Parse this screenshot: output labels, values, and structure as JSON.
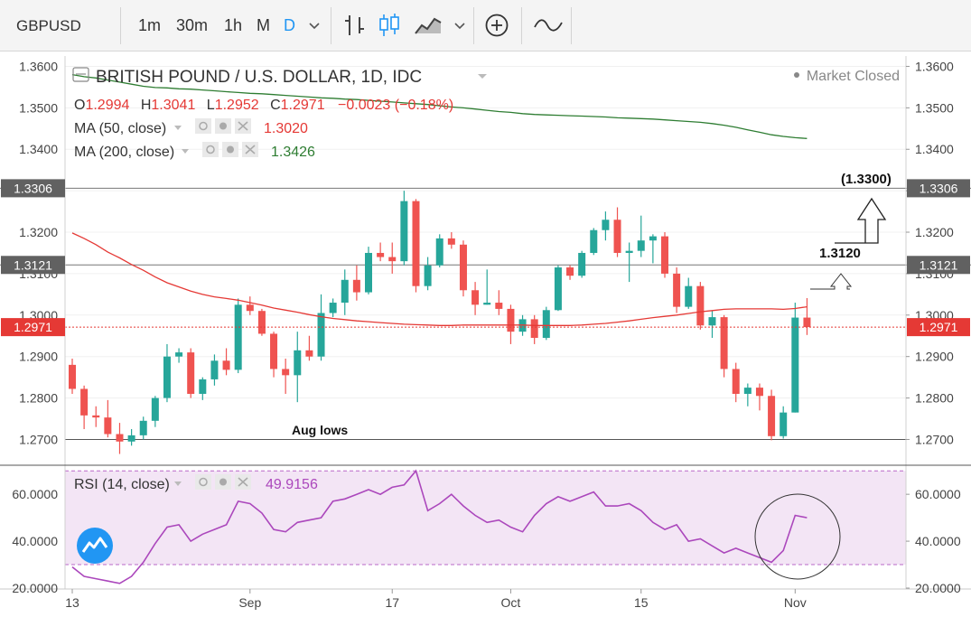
{
  "toolbar": {
    "symbol": "GBPUSD",
    "intervals": [
      "1m",
      "30m",
      "1h",
      "M",
      "D"
    ],
    "active_interval": "D"
  },
  "chart_data": [
    {
      "type": "candlestick",
      "title": "BRITISH POUND / U.S. DOLLAR, 1D, IDC",
      "status": "Market Closed",
      "ohlc_label": {
        "o": "1.2994",
        "h": "1.3041",
        "l": "1.2952",
        "c": "1.2971",
        "chg": "−0.0023 (−0.18%)"
      },
      "ma50": {
        "label": "MA (50, close)",
        "value": "1.3020",
        "color": "#e53935"
      },
      "ma200": {
        "label": "MA (200, close)",
        "value": "1.3426",
        "color": "#2e7d32"
      },
      "up_color": "#26a69a",
      "down_color": "#ef5350",
      "ylim": [
        1.264,
        1.3625
      ],
      "y_ticks": [
        "1.2700",
        "1.2800",
        "1.2900",
        "1.3000",
        "1.3100",
        "1.3200",
        "1.3300",
        "1.3400",
        "1.3500",
        "1.3600"
      ],
      "x_ticks": [
        "13",
        "Sep",
        "17",
        "Oct",
        "15",
        "Nov"
      ],
      "x_tick_index": [
        0,
        15,
        27,
        37,
        48,
        61
      ],
      "last_price": "1.2971",
      "hlines": [
        {
          "label": "1.3306",
          "value": 1.3306
        },
        {
          "label": "1.3121",
          "value": 1.3121
        }
      ],
      "support_line": {
        "value": 1.27,
        "label": "Aug lows"
      },
      "annotations": [
        "1.3120",
        "(1.3300)"
      ],
      "candles": [
        [
          1.288,
          1.2895,
          1.281,
          1.2822
        ],
        [
          1.2822,
          1.283,
          1.2725,
          1.2758
        ],
        [
          1.2758,
          1.278,
          1.273,
          1.2753
        ],
        [
          1.2753,
          1.2795,
          1.2705,
          1.2713
        ],
        [
          1.2713,
          1.274,
          1.2665,
          1.2695
        ],
        [
          1.2695,
          1.2725,
          1.2685,
          1.271
        ],
        [
          1.271,
          1.2755,
          1.27,
          1.2745
        ],
        [
          1.2745,
          1.2805,
          1.273,
          1.28
        ],
        [
          1.28,
          1.293,
          1.279,
          1.29
        ],
        [
          1.29,
          1.292,
          1.2885,
          1.291
        ],
        [
          1.291,
          1.292,
          1.28,
          1.281
        ],
        [
          1.281,
          1.285,
          1.2795,
          1.2845
        ],
        [
          1.2845,
          1.2905,
          1.283,
          1.289
        ],
        [
          1.289,
          1.292,
          1.2855,
          1.2868
        ],
        [
          1.2868,
          1.304,
          1.286,
          1.3025
        ],
        [
          1.3025,
          1.3045,
          1.3,
          1.301
        ],
        [
          1.301,
          1.3015,
          1.295,
          1.2955
        ],
        [
          1.2955,
          1.296,
          1.285,
          1.287
        ],
        [
          1.287,
          1.2895,
          1.281,
          1.2855
        ],
        [
          1.2855,
          1.296,
          1.279,
          1.2915
        ],
        [
          1.2915,
          1.295,
          1.289,
          1.29
        ],
        [
          1.29,
          1.305,
          1.289,
          1.3005
        ],
        [
          1.3005,
          1.304,
          1.2995,
          1.303
        ],
        [
          1.303,
          1.311,
          1.3,
          1.3085
        ],
        [
          1.3085,
          1.312,
          1.3035,
          1.3055
        ],
        [
          1.3055,
          1.3165,
          1.305,
          1.315
        ],
        [
          1.315,
          1.3175,
          1.313,
          1.314
        ],
        [
          1.314,
          1.3175,
          1.31,
          1.313
        ],
        [
          1.313,
          1.33,
          1.312,
          1.3275
        ],
        [
          1.3275,
          1.328,
          1.3055,
          1.307
        ],
        [
          1.307,
          1.314,
          1.306,
          1.312
        ],
        [
          1.312,
          1.3195,
          1.3115,
          1.3185
        ],
        [
          1.3185,
          1.32,
          1.316,
          1.317
        ],
        [
          1.317,
          1.318,
          1.3045,
          1.306
        ],
        [
          1.306,
          1.308,
          1.3,
          1.3025
        ],
        [
          1.3025,
          1.311,
          1.3025,
          1.303
        ],
        [
          1.303,
          1.306,
          1.3,
          1.3015
        ],
        [
          1.3015,
          1.3025,
          1.293,
          1.296
        ],
        [
          1.296,
          1.3,
          1.295,
          1.299
        ],
        [
          1.299,
          1.3,
          1.293,
          1.2945
        ],
        [
          1.2945,
          1.302,
          1.294,
          1.3012
        ],
        [
          1.3012,
          1.312,
          1.301,
          1.3115
        ],
        [
          1.3115,
          1.312,
          1.3085,
          1.3095
        ],
        [
          1.3095,
          1.3155,
          1.309,
          1.315
        ],
        [
          1.315,
          1.321,
          1.3145,
          1.3205
        ],
        [
          1.3205,
          1.325,
          1.318,
          1.323
        ],
        [
          1.323,
          1.326,
          1.314,
          1.315
        ],
        [
          1.315,
          1.3175,
          1.308,
          1.3155
        ],
        [
          1.3155,
          1.324,
          1.314,
          1.318
        ],
        [
          1.318,
          1.3195,
          1.3125,
          1.319
        ],
        [
          1.319,
          1.32,
          1.309,
          1.31
        ],
        [
          1.31,
          1.3115,
          1.3005,
          1.302
        ],
        [
          1.302,
          1.309,
          1.3015,
          1.307
        ],
        [
          1.307,
          1.308,
          1.2965,
          1.2975
        ],
        [
          1.2975,
          1.301,
          1.2945,
          1.2995
        ],
        [
          1.2995,
          1.3,
          1.285,
          1.287
        ],
        [
          1.287,
          1.2885,
          1.279,
          1.281
        ],
        [
          1.281,
          1.2835,
          1.278,
          1.2825
        ],
        [
          1.2825,
          1.2835,
          1.277,
          1.2805
        ],
        [
          1.2805,
          1.282,
          1.2698,
          1.2708
        ],
        [
          1.2708,
          1.278,
          1.2702,
          1.2765
        ],
        [
          1.2765,
          1.303,
          1.2765,
          1.2994
        ],
        [
          1.2994,
          1.3041,
          1.2952,
          1.2971
        ]
      ],
      "ma50_values": [
        1.3198,
        1.3185,
        1.317,
        1.3152,
        1.3138,
        1.3122,
        1.3108,
        1.3092,
        1.3078,
        1.3068,
        1.3058,
        1.305,
        1.3044,
        1.304,
        1.3036,
        1.303,
        1.3024,
        1.3017,
        1.3012,
        1.3007,
        1.3001,
        1.2996,
        1.2992,
        1.2989,
        1.2986,
        1.2984,
        1.2982,
        1.298,
        1.2978,
        1.2977,
        1.2976,
        1.2975,
        1.2975,
        1.2976,
        1.2976,
        1.2976,
        1.2976,
        1.2976,
        1.2976,
        1.2975,
        1.2975,
        1.2975,
        1.2975,
        1.2976,
        1.2978,
        1.298,
        1.2983,
        1.2986,
        1.299,
        1.2994,
        1.2997,
        1.3,
        1.3004,
        1.3008,
        1.3011,
        1.3014,
        1.3015,
        1.3015,
        1.3015,
        1.3015,
        1.3014,
        1.3016,
        1.302
      ],
      "ma200_values": [
        1.358,
        1.3575,
        1.3572,
        1.3567,
        1.3562,
        1.3557,
        1.3552,
        1.3549,
        1.3548,
        1.3546,
        1.3545,
        1.3543,
        1.3541,
        1.3539,
        1.3537,
        1.3535,
        1.3534,
        1.3532,
        1.353,
        1.3528,
        1.3526,
        1.3524,
        1.3523,
        1.3521,
        1.352,
        1.3518,
        1.3516,
        1.3514,
        1.3512,
        1.351,
        1.3508,
        1.3505,
        1.3502,
        1.35,
        1.3497,
        1.3494,
        1.3491,
        1.3489,
        1.3486,
        1.3484,
        1.3483,
        1.3482,
        1.3481,
        1.348,
        1.3479,
        1.3478,
        1.3476,
        1.3475,
        1.3474,
        1.3473,
        1.3471,
        1.3469,
        1.3467,
        1.3465,
        1.3462,
        1.3458,
        1.3453,
        1.3447,
        1.3441,
        1.3435,
        1.3431,
        1.3428,
        1.3426
      ]
    },
    {
      "type": "line",
      "title": "RSI (14, close)",
      "value": "49.9156",
      "color": "#ab47bc",
      "ylim": [
        20,
        72
      ],
      "y_ticks": [
        "20.0000",
        "40.0000",
        "60.0000"
      ],
      "band": [
        30,
        70
      ],
      "values": [
        29,
        25,
        24,
        23,
        22,
        25,
        31,
        39,
        46,
        47,
        40,
        43,
        45,
        47,
        57,
        56,
        52,
        45,
        44,
        48,
        49,
        50,
        57,
        58,
        60,
        62,
        60,
        63,
        64,
        70,
        53,
        56,
        60,
        55,
        51,
        48,
        49,
        46,
        44,
        51,
        56,
        59,
        57,
        59,
        61,
        55,
        55,
        56,
        53,
        48,
        45,
        47,
        40,
        41,
        38,
        35,
        37,
        35,
        33,
        31,
        36,
        51,
        50
      ]
    }
  ]
}
